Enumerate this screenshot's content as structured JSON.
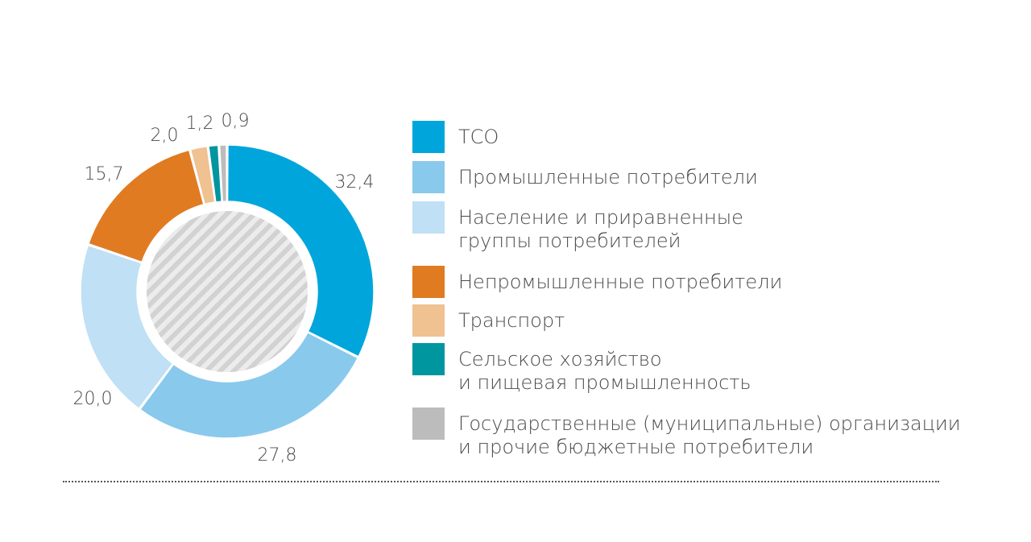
{
  "chart_data": {
    "type": "pie",
    "title": "",
    "series": [
      {
        "label": "ТСО",
        "value": 32.4,
        "display": "32,4",
        "color": "#00a6db"
      },
      {
        "label": "Промышленные потребители",
        "value": 27.8,
        "display": "27,8",
        "color": "#89c9ec"
      },
      {
        "label": "Население и приравненные\nгруппы потребителей",
        "value": 20.0,
        "display": "20,0",
        "color": "#bfe0f5"
      },
      {
        "label": "Непромышленные потребители",
        "value": 15.7,
        "display": "15,7",
        "color": "#e07b22"
      },
      {
        "label": "Транспорт",
        "value": 2.0,
        "display": "2,0",
        "color": "#f0c191"
      },
      {
        "label": "Сельское хозяйство\nи пищевая промышленность",
        "value": 1.2,
        "display": "1,2",
        "color": "#00969f"
      },
      {
        "label": "Государственные (муниципальные) организации\nи прочие бюджетные потребители",
        "value": 0.9,
        "display": "0,9",
        "color": "#bcbcbc"
      }
    ],
    "legend_position": "right"
  }
}
